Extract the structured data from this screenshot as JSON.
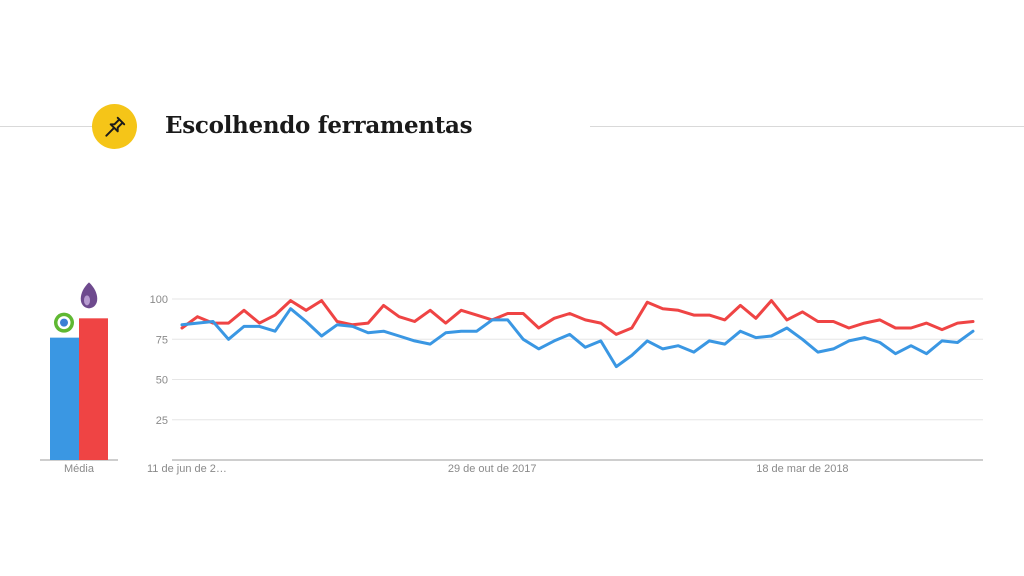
{
  "slide": {
    "title": "Escolhendo ferramentas",
    "title_icon": "pushpin-icon",
    "accent_color": "#f5c518"
  },
  "chart_data": {
    "type": "line",
    "average_panel": {
      "label": "Média",
      "bars": [
        {
          "logo": "blue-green-circle-logo",
          "color": "#3a97e3",
          "value": 76
        },
        {
          "logo": "purple-drop-logo",
          "color": "#ef4444",
          "value": 88
        }
      ]
    },
    "y_ticks": [
      25,
      50,
      75,
      100
    ],
    "ylim": [
      0,
      100
    ],
    "x_tick_labels": [
      "11 de jun de 2…",
      "29 de out de 2017",
      "18 de mar de 2018"
    ],
    "x_tick_index": [
      0,
      20,
      40
    ],
    "grid": true,
    "series": [
      {
        "color": "#ef4444",
        "values": [
          82,
          89,
          85,
          85,
          93,
          85,
          90,
          99,
          93,
          99,
          86,
          84,
          85,
          96,
          89,
          86,
          93,
          85,
          93,
          90,
          87,
          91,
          91,
          82,
          88,
          91,
          87,
          85,
          78,
          82,
          98,
          94,
          93,
          90,
          90,
          87,
          96,
          88,
          99,
          87,
          92,
          86,
          86,
          82,
          85,
          87,
          82,
          82,
          85,
          81,
          85,
          86
        ]
      },
      {
        "color": "#3a97e3",
        "values": [
          84,
          85,
          86,
          75,
          83,
          83,
          80,
          94,
          86,
          77,
          84,
          83,
          79,
          80,
          77,
          74,
          72,
          79,
          80,
          80,
          87,
          87,
          75,
          69,
          74,
          78,
          70,
          74,
          58,
          65,
          74,
          69,
          71,
          67,
          74,
          72,
          80,
          76,
          77,
          82,
          75,
          67,
          69,
          74,
          76,
          73,
          66,
          71,
          66,
          74,
          73,
          80
        ]
      }
    ]
  }
}
